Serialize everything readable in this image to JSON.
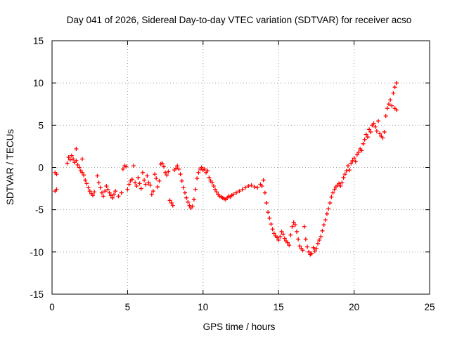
{
  "chart_data": {
    "type": "scatter",
    "title": "Day 041 of 2026, Sidereal Day-to-day VTEC variation (SDTVAR) for receiver acso",
    "xlabel": "GPS time / hours",
    "ylabel": "SDTVAR / TECUs",
    "xlim": [
      0,
      25
    ],
    "ylim": [
      -15,
      15
    ],
    "xticks": [
      0,
      5,
      10,
      15,
      20,
      25
    ],
    "yticks": [
      -15,
      -10,
      -5,
      0,
      5,
      10,
      15
    ],
    "grid": true,
    "marker": "+",
    "color": "#ff0000",
    "series": [
      {
        "name": "SDTVAR",
        "points": [
          [
            0.2,
            -2.8
          ],
          [
            0.2,
            -0.6
          ],
          [
            0.3,
            -2.6
          ],
          [
            0.3,
            -0.8
          ],
          [
            1.0,
            0.5
          ],
          [
            1.1,
            1.2
          ],
          [
            1.2,
            0.9
          ],
          [
            1.3,
            1.4
          ],
          [
            1.4,
            1.0
          ],
          [
            1.5,
            0.6
          ],
          [
            1.6,
            2.2
          ],
          [
            1.6,
            0.8
          ],
          [
            1.7,
            0.3
          ],
          [
            1.8,
            0.0
          ],
          [
            1.9,
            -0.4
          ],
          [
            2.0,
            1.0
          ],
          [
            2.0,
            -0.6
          ],
          [
            2.1,
            -0.9
          ],
          [
            2.2,
            -1.5
          ],
          [
            2.3,
            -1.9
          ],
          [
            2.4,
            -2.4
          ],
          [
            2.5,
            -2.8
          ],
          [
            2.6,
            -3.1
          ],
          [
            2.7,
            -3.3
          ],
          [
            2.8,
            -2.9
          ],
          [
            3.0,
            -1.0
          ],
          [
            3.1,
            -1.8
          ],
          [
            3.2,
            -2.4
          ],
          [
            3.3,
            -3.0
          ],
          [
            3.4,
            -3.4
          ],
          [
            3.5,
            -2.8
          ],
          [
            3.6,
            -2.2
          ],
          [
            3.7,
            -2.6
          ],
          [
            3.8,
            -3.0
          ],
          [
            3.9,
            -3.3
          ],
          [
            4.0,
            -3.6
          ],
          [
            4.1,
            -3.2
          ],
          [
            4.2,
            -2.8
          ],
          [
            4.4,
            -3.4
          ],
          [
            4.6,
            -3.0
          ],
          [
            4.7,
            -0.2
          ],
          [
            4.8,
            0.2
          ],
          [
            4.9,
            0.1
          ],
          [
            5.0,
            -2.6
          ],
          [
            5.1,
            -2.0
          ],
          [
            5.2,
            -1.6
          ],
          [
            5.3,
            -1.4
          ],
          [
            5.4,
            0.2
          ],
          [
            5.5,
            -1.8
          ],
          [
            5.6,
            -2.2
          ],
          [
            5.7,
            -1.2
          ],
          [
            5.8,
            -1.9
          ],
          [
            5.9,
            -2.5
          ],
          [
            6.0,
            -0.6
          ],
          [
            6.1,
            -1.5
          ],
          [
            6.2,
            -2.0
          ],
          [
            6.3,
            -1.0
          ],
          [
            6.4,
            -1.8
          ],
          [
            6.5,
            -2.1
          ],
          [
            6.6,
            -3.2
          ],
          [
            6.7,
            -2.8
          ],
          [
            6.8,
            -0.8
          ],
          [
            6.9,
            -1.3
          ],
          [
            7.0,
            -2.3
          ],
          [
            7.1,
            -1.6
          ],
          [
            7.2,
            0.4
          ],
          [
            7.3,
            0.5
          ],
          [
            7.4,
            0.1
          ],
          [
            7.5,
            -0.6
          ],
          [
            7.6,
            -0.9
          ],
          [
            7.7,
            -0.5
          ],
          [
            7.8,
            -3.9
          ],
          [
            7.9,
            -4.2
          ],
          [
            8.0,
            -4.5
          ],
          [
            8.1,
            -0.3
          ],
          [
            8.2,
            -0.1
          ],
          [
            8.3,
            0.2
          ],
          [
            8.4,
            -0.2
          ],
          [
            8.5,
            -0.8
          ],
          [
            8.6,
            -1.6
          ],
          [
            8.7,
            -2.4
          ],
          [
            8.8,
            -3.0
          ],
          [
            8.9,
            -3.6
          ],
          [
            9.0,
            -4.1
          ],
          [
            9.1,
            -4.5
          ],
          [
            9.2,
            -4.8
          ],
          [
            9.3,
            -4.6
          ],
          [
            9.4,
            -3.8
          ],
          [
            9.5,
            -2.6
          ],
          [
            9.6,
            -1.3
          ],
          [
            9.7,
            -0.6
          ],
          [
            9.8,
            -0.2
          ],
          [
            9.9,
            0.0
          ],
          [
            10.0,
            -0.3
          ],
          [
            10.1,
            -0.2
          ],
          [
            10.2,
            -0.6
          ],
          [
            10.3,
            -0.4
          ],
          [
            10.4,
            -1.2
          ],
          [
            10.5,
            -1.6
          ],
          [
            10.6,
            -1.8
          ],
          [
            10.7,
            -2.2
          ],
          [
            10.8,
            -2.6
          ],
          [
            10.9,
            -2.9
          ],
          [
            11.0,
            -3.2
          ],
          [
            11.1,
            -3.4
          ],
          [
            11.2,
            -3.5
          ],
          [
            11.3,
            -3.6
          ],
          [
            11.4,
            -3.7
          ],
          [
            11.5,
            -3.8
          ],
          [
            11.6,
            -3.6
          ],
          [
            11.7,
            -3.4
          ],
          [
            11.8,
            -3.5
          ],
          [
            11.9,
            -3.3
          ],
          [
            12.0,
            -3.2
          ],
          [
            12.2,
            -3.0
          ],
          [
            12.4,
            -2.8
          ],
          [
            12.6,
            -2.6
          ],
          [
            12.8,
            -2.4
          ],
          [
            13.0,
            -2.2
          ],
          [
            13.2,
            -2.1
          ],
          [
            13.4,
            -2.3
          ],
          [
            13.6,
            -2.4
          ],
          [
            13.8,
            -2.0
          ],
          [
            13.9,
            -2.2
          ],
          [
            14.0,
            -1.5
          ],
          [
            14.1,
            -3.0
          ],
          [
            14.2,
            -4.2
          ],
          [
            14.3,
            -5.3
          ],
          [
            14.4,
            -6.0
          ],
          [
            14.5,
            -6.7
          ],
          [
            14.6,
            -7.3
          ],
          [
            14.7,
            -7.8
          ],
          [
            14.8,
            -8.1
          ],
          [
            14.9,
            -8.3
          ],
          [
            15.0,
            -8.6
          ],
          [
            15.1,
            -8.2
          ],
          [
            15.2,
            -7.6
          ],
          [
            15.3,
            -7.9
          ],
          [
            15.4,
            -8.4
          ],
          [
            15.5,
            -8.7
          ],
          [
            15.6,
            -8.9
          ],
          [
            15.7,
            -9.2
          ],
          [
            15.8,
            -8.0
          ],
          [
            15.9,
            -7.0
          ],
          [
            16.0,
            -6.5
          ],
          [
            16.1,
            -6.8
          ],
          [
            16.2,
            -7.6
          ],
          [
            16.3,
            -8.5
          ],
          [
            16.4,
            -9.3
          ],
          [
            16.5,
            -9.6
          ],
          [
            16.6,
            -9.8
          ],
          [
            16.7,
            -7.0
          ],
          [
            16.8,
            -8.5
          ],
          [
            16.9,
            -9.4
          ],
          [
            17.0,
            -10.0
          ],
          [
            17.1,
            -10.3
          ],
          [
            17.2,
            -10.2
          ],
          [
            17.3,
            -9.5
          ],
          [
            17.4,
            -9.9
          ],
          [
            17.5,
            -9.6
          ],
          [
            17.6,
            -9.0
          ],
          [
            17.7,
            -8.6
          ],
          [
            17.8,
            -8.2
          ],
          [
            17.9,
            -7.5
          ],
          [
            18.0,
            -6.8
          ],
          [
            18.1,
            -6.2
          ],
          [
            18.2,
            -5.5
          ],
          [
            18.3,
            -4.9
          ],
          [
            18.4,
            -4.2
          ],
          [
            18.5,
            -3.5
          ],
          [
            18.6,
            -3.0
          ],
          [
            18.7,
            -2.6
          ],
          [
            18.8,
            -2.3
          ],
          [
            18.9,
            -2.1
          ],
          [
            19.0,
            -1.9
          ],
          [
            19.1,
            -2.2
          ],
          [
            19.2,
            -1.8
          ],
          [
            19.3,
            -1.2
          ],
          [
            19.4,
            -0.8
          ],
          [
            19.5,
            -0.4
          ],
          [
            19.6,
            0.2
          ],
          [
            19.7,
            -0.3
          ],
          [
            19.8,
            0.5
          ],
          [
            19.9,
            0.8
          ],
          [
            20.0,
            1.1
          ],
          [
            20.1,
            0.7
          ],
          [
            20.2,
            1.5
          ],
          [
            20.3,
            1.8
          ],
          [
            20.4,
            2.2
          ],
          [
            20.5,
            2.0
          ],
          [
            20.6,
            2.8
          ],
          [
            20.7,
            3.3
          ],
          [
            20.8,
            3.9
          ],
          [
            20.9,
            3.6
          ],
          [
            21.0,
            4.5
          ],
          [
            21.1,
            4.2
          ],
          [
            21.2,
            5.0
          ],
          [
            21.3,
            5.2
          ],
          [
            21.4,
            4.8
          ],
          [
            21.5,
            4.3
          ],
          [
            21.6,
            5.5
          ],
          [
            21.7,
            4.0
          ],
          [
            21.8,
            3.7
          ],
          [
            21.9,
            3.5
          ],
          [
            22.0,
            4.2
          ],
          [
            22.1,
            6.1
          ],
          [
            22.2,
            7.0
          ],
          [
            22.3,
            7.5
          ],
          [
            22.4,
            8.0
          ],
          [
            22.5,
            7.3
          ],
          [
            22.6,
            8.8
          ],
          [
            22.7,
            9.5
          ],
          [
            22.8,
            10.0
          ],
          [
            22.8,
            6.8
          ],
          [
            22.7,
            7.0
          ]
        ]
      }
    ]
  }
}
